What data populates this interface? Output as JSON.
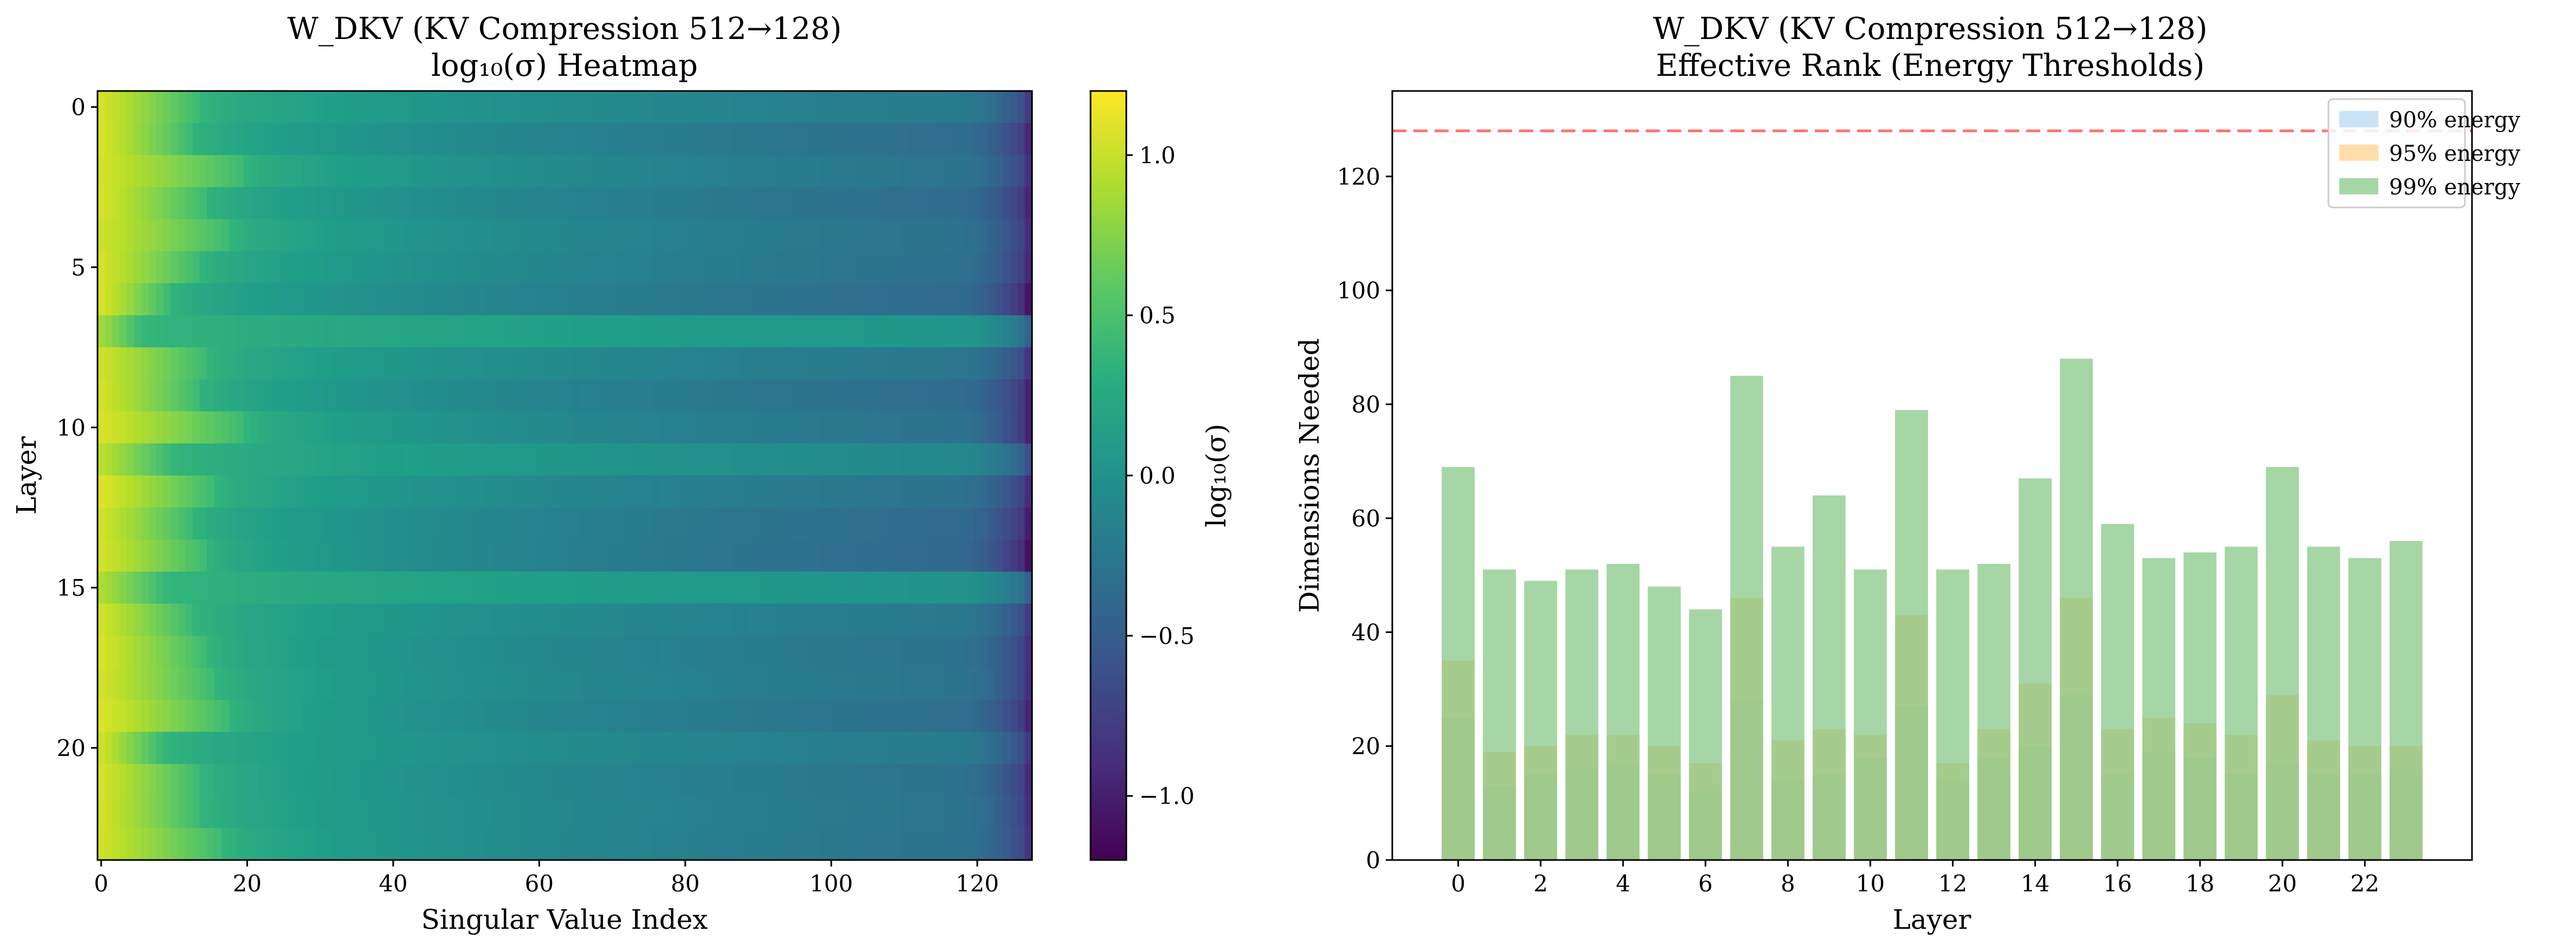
{
  "chart_data": [
    {
      "type": "heatmap",
      "title": "W_DKV (KV Compression 512→128)",
      "subtitle": "log₁₀(σ) Heatmap",
      "xlabel": "Singular Value Index",
      "ylabel": "Layer",
      "colorbar_label": "log₁₀(σ)",
      "colormap": "viridis",
      "xlim": [
        0,
        127
      ],
      "ylim": [
        0,
        23
      ],
      "clim": [
        -1.2,
        1.2
      ],
      "x_ticks": [
        0,
        20,
        40,
        60,
        80,
        100,
        120
      ],
      "y_ticks": [
        0,
        5,
        10,
        15,
        20
      ],
      "colorbar_ticks": [
        1.0,
        0.5,
        0.0,
        -0.5,
        -1.0
      ],
      "colorbar_tick_labels": [
        "1.0",
        "0.5",
        "0.0",
        "−0.5",
        "−1.0"
      ],
      "layers": [
        {
          "layer": 0,
          "first": 1.05,
          "knee": 13,
          "mid": -0.22,
          "end": -0.66
        },
        {
          "layer": 1,
          "first": 1.06,
          "knee": 12,
          "mid": -0.35,
          "end": -0.82
        },
        {
          "layer": 2,
          "first": 1.04,
          "knee": 19,
          "mid": -0.28,
          "end": -0.74
        },
        {
          "layer": 3,
          "first": 1.05,
          "knee": 14,
          "mid": -0.36,
          "end": -0.84
        },
        {
          "layer": 4,
          "first": 1.02,
          "knee": 17,
          "mid": -0.3,
          "end": -0.78
        },
        {
          "layer": 5,
          "first": 1.05,
          "knee": 13,
          "mid": -0.32,
          "end": -0.82
        },
        {
          "layer": 6,
          "first": 1.06,
          "knee": 9,
          "mid": -0.38,
          "end": -0.95
        },
        {
          "layer": 7,
          "first": 0.85,
          "knee": 5,
          "mid": 0.05,
          "end": -0.32
        },
        {
          "layer": 8,
          "first": 1.02,
          "knee": 14,
          "mid": -0.26,
          "end": -0.7
        },
        {
          "layer": 9,
          "first": 1.04,
          "knee": 13,
          "mid": -0.36,
          "end": -0.85
        },
        {
          "layer": 10,
          "first": 1.06,
          "knee": 19,
          "mid": -0.3,
          "end": -0.86
        },
        {
          "layer": 11,
          "first": 0.95,
          "knee": 9,
          "mid": -0.08,
          "end": -0.5
        },
        {
          "layer": 12,
          "first": 1.08,
          "knee": 15,
          "mid": -0.3,
          "end": -0.78
        },
        {
          "layer": 13,
          "first": 1.03,
          "knee": 12,
          "mid": -0.38,
          "end": -0.88
        },
        {
          "layer": 14,
          "first": 1.04,
          "knee": 14,
          "mid": -0.4,
          "end": -0.98
        },
        {
          "layer": 15,
          "first": 0.9,
          "knee": 8,
          "mid": 0.02,
          "end": -0.35
        },
        {
          "layer": 16,
          "first": 1.03,
          "knee": 12,
          "mid": -0.24,
          "end": -0.66
        },
        {
          "layer": 17,
          "first": 1.06,
          "knee": 14,
          "mid": -0.3,
          "end": -0.75
        },
        {
          "layer": 18,
          "first": 1.04,
          "knee": 15,
          "mid": -0.28,
          "end": -0.76
        },
        {
          "layer": 19,
          "first": 1.07,
          "knee": 17,
          "mid": -0.34,
          "end": -0.84
        },
        {
          "layer": 20,
          "first": 1.02,
          "knee": 8,
          "mid": -0.22,
          "end": -0.68
        },
        {
          "layer": 21,
          "first": 1.05,
          "knee": 13,
          "mid": -0.3,
          "end": -0.8
        },
        {
          "layer": 22,
          "first": 1.04,
          "knee": 13,
          "mid": -0.28,
          "end": -0.76
        },
        {
          "layer": 23,
          "first": 1.03,
          "knee": 16,
          "mid": -0.3,
          "end": -0.72
        }
      ]
    },
    {
      "type": "bar",
      "title": "W_DKV (KV Compression 512→128)",
      "subtitle": "Effective Rank (Energy Thresholds)",
      "xlabel": "Layer",
      "ylabel": "Dimensions Needed",
      "categories": [
        0,
        1,
        2,
        3,
        4,
        5,
        6,
        7,
        8,
        9,
        10,
        11,
        12,
        13,
        14,
        15,
        16,
        17,
        18,
        19,
        20,
        21,
        22,
        23
      ],
      "x_ticks": [
        0,
        2,
        4,
        6,
        8,
        10,
        12,
        14,
        16,
        18,
        20,
        22
      ],
      "ylim": [
        0,
        135
      ],
      "y_ticks": [
        0,
        20,
        40,
        60,
        80,
        100,
        120
      ],
      "reference_line": {
        "y": 128,
        "style": "dashed",
        "color": "#ff0000"
      },
      "legend_position": "top-right",
      "series": [
        {
          "name": "90% energy",
          "color": "#a8d0f0",
          "values": [
            25,
            13,
            15,
            16,
            17,
            15,
            12,
            28,
            14,
            15,
            18,
            27,
            14,
            18,
            20,
            29,
            15,
            19,
            18,
            15,
            17,
            15,
            15,
            16
          ]
        },
        {
          "name": "95% energy",
          "color": "#ffc673",
          "values": [
            35,
            19,
            20,
            22,
            22,
            20,
            17,
            46,
            21,
            23,
            22,
            43,
            17,
            23,
            31,
            46,
            23,
            25,
            24,
            22,
            29,
            21,
            20,
            20
          ]
        },
        {
          "name": "99% energy",
          "color": "#80c580",
          "values": [
            69,
            51,
            49,
            51,
            52,
            48,
            44,
            85,
            55,
            64,
            51,
            79,
            51,
            52,
            67,
            88,
            59,
            53,
            54,
            55,
            69,
            55,
            53,
            56
          ]
        }
      ]
    }
  ]
}
